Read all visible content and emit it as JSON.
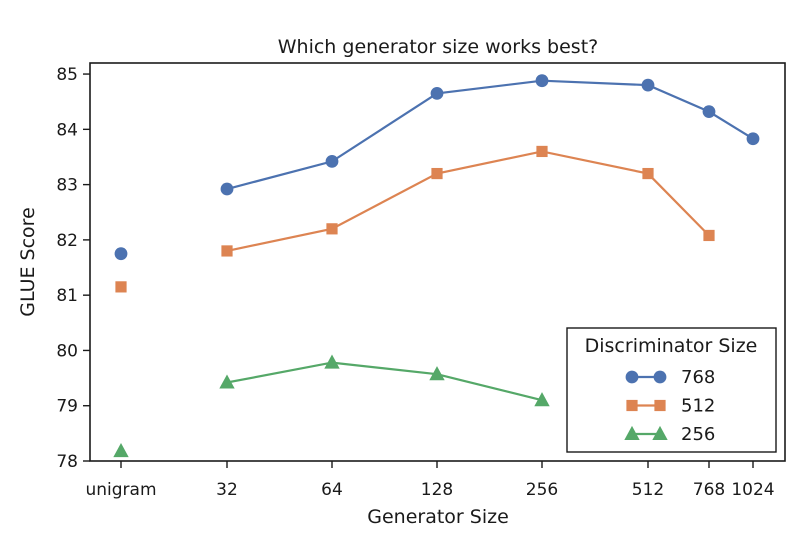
{
  "chart_data": {
    "type": "line",
    "title": "Which generator size works best?",
    "xlabel": "Generator Size",
    "ylabel": "GLUE Score",
    "categories": [
      "unigram",
      "32",
      "64",
      "128",
      "256",
      "512",
      "768",
      "1024"
    ],
    "ylim": [
      78,
      85.2
    ],
    "yticks": [
      78,
      79,
      80,
      81,
      82,
      83,
      84,
      85
    ],
    "grid": false,
    "legend": {
      "title": "Discriminator Size",
      "placement": "lower-right"
    },
    "series": [
      {
        "name": "768",
        "color": "#4c72b0",
        "marker": "circle",
        "unigram": 81.75,
        "x": [
          "32",
          "64",
          "128",
          "256",
          "512",
          "768",
          "1024"
        ],
        "values": [
          82.92,
          83.42,
          84.65,
          84.88,
          84.8,
          84.32,
          83.83
        ]
      },
      {
        "name": "512",
        "color": "#dd8452",
        "marker": "square",
        "unigram": 81.15,
        "x": [
          "32",
          "64",
          "128",
          "256",
          "512",
          "768"
        ],
        "values": [
          81.8,
          82.2,
          83.2,
          83.6,
          83.2,
          82.08
        ]
      },
      {
        "name": "256",
        "color": "#55a868",
        "marker": "triangle",
        "unigram": 78.18,
        "x": [
          "32",
          "64",
          "128",
          "256"
        ],
        "values": [
          79.42,
          79.78,
          79.57,
          79.1
        ]
      }
    ]
  }
}
